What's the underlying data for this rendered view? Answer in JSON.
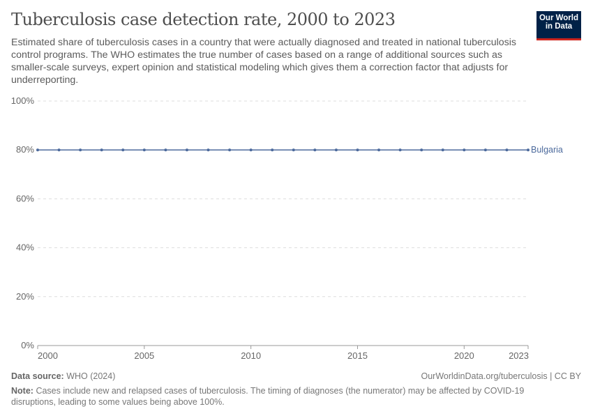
{
  "title": "Tuberculosis case detection rate, 2000 to 2023",
  "subtitle": "Estimated share of tuberculosis cases in a country that were actually diagnosed and treated in national tuberculosis control programs. The WHO estimates the true number of cases based on a range of additional sources such as smaller-scale surveys, expert opinion and statistical modeling which gives them a correction factor that adjusts for underreporting.",
  "logo": {
    "line1": "Our World",
    "line2": "in Data"
  },
  "footer": {
    "source_label": "Data source:",
    "source": "WHO (2024)",
    "url": "OurWorldinData.org/tuberculosis | CC BY",
    "note_label": "Note:",
    "note": "Cases include new and relapsed cases of tuberculosis. The timing of diagnoses (the numerator) may be affected by COVID-19 disruptions, leading to some values being above 100%."
  },
  "chart_data": {
    "type": "line",
    "title": "Tuberculosis case detection rate, 2000 to 2023",
    "xlim": [
      2000,
      2023
    ],
    "ylim": [
      0,
      100
    ],
    "x_ticks": [
      "2000",
      "2005",
      "2010",
      "2015",
      "2020",
      "2023"
    ],
    "y_ticks": [
      "0%",
      "20%",
      "40%",
      "60%",
      "80%",
      "100%"
    ],
    "grid": true,
    "legend": "right-end-label",
    "series": [
      {
        "name": "Bulgaria",
        "color": "#4c6a9c",
        "x": [
          2000,
          2001,
          2002,
          2003,
          2004,
          2005,
          2006,
          2007,
          2008,
          2009,
          2010,
          2011,
          2012,
          2013,
          2014,
          2015,
          2016,
          2017,
          2018,
          2019,
          2020,
          2021,
          2022,
          2023
        ],
        "y": [
          80,
          80,
          80,
          80,
          80,
          80,
          80,
          80,
          80,
          80,
          80,
          80,
          80,
          80,
          80,
          80,
          80,
          80,
          80,
          80,
          80,
          80,
          80,
          80
        ]
      }
    ]
  }
}
